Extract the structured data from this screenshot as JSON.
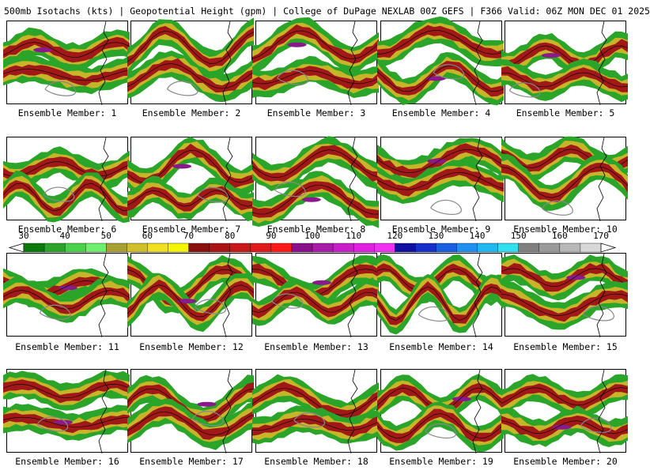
{
  "header": {
    "title": "500mb Isotachs (kts) | Geopotential Height (gpm) | College of DuPage NEXLAB   00Z GEFS | F366 Valid: 06Z MON DEC 01 2025"
  },
  "panels": [
    {
      "label": "Ensemble Member: 1"
    },
    {
      "label": "Ensemble Member: 2"
    },
    {
      "label": "Ensemble Member: 3"
    },
    {
      "label": "Ensemble Member: 4"
    },
    {
      "label": "Ensemble Member: 5"
    },
    {
      "label": "Ensemble Member: 6"
    },
    {
      "label": "Ensemble Member: 7"
    },
    {
      "label": "Ensemble Member: 8"
    },
    {
      "label": "Ensemble Member: 9"
    },
    {
      "label": "Ensemble Member: 10"
    },
    {
      "label": "Ensemble Member: 11"
    },
    {
      "label": "Ensemble Member: 12"
    },
    {
      "label": "Ensemble Member: 13"
    },
    {
      "label": "Ensemble Member: 14"
    },
    {
      "label": "Ensemble Member: 15"
    },
    {
      "label": "Ensemble Member: 16"
    },
    {
      "label": "Ensemble Member: 17"
    },
    {
      "label": "Ensemble Member: 18"
    },
    {
      "label": "Ensemble Member: 19"
    },
    {
      "label": "Ensemble Member: 20"
    }
  ],
  "colorbar": {
    "labels": [
      "30",
      "40",
      "50",
      "60",
      "70",
      "80",
      "90",
      "100",
      "110",
      "120",
      "130",
      "140",
      "150",
      "160",
      "170"
    ],
    "colors": [
      "#0a7a0a",
      "#2aa52a",
      "#49d149",
      "#6ef06e",
      "#a8a032",
      "#cfbf2a",
      "#f0e020",
      "#f5f500",
      "#8a1010",
      "#aa1414",
      "#c81818",
      "#e01a1a",
      "#ff1a1a",
      "#8a0f8a",
      "#a81aa8",
      "#c820c8",
      "#e020e0",
      "#f030f0",
      "#1010a0",
      "#1430c8",
      "#1860e0",
      "#2090f0",
      "#20b8f0",
      "#30e0f0",
      "#808080",
      "#9a9a9a",
      "#b8b8b8",
      "#d8d8d8"
    ],
    "band_colors": {
      "weak": "#2aa52a",
      "moderate": "#c8b428",
      "strong": "#a01818",
      "extreme": "#8a1a8a"
    }
  }
}
